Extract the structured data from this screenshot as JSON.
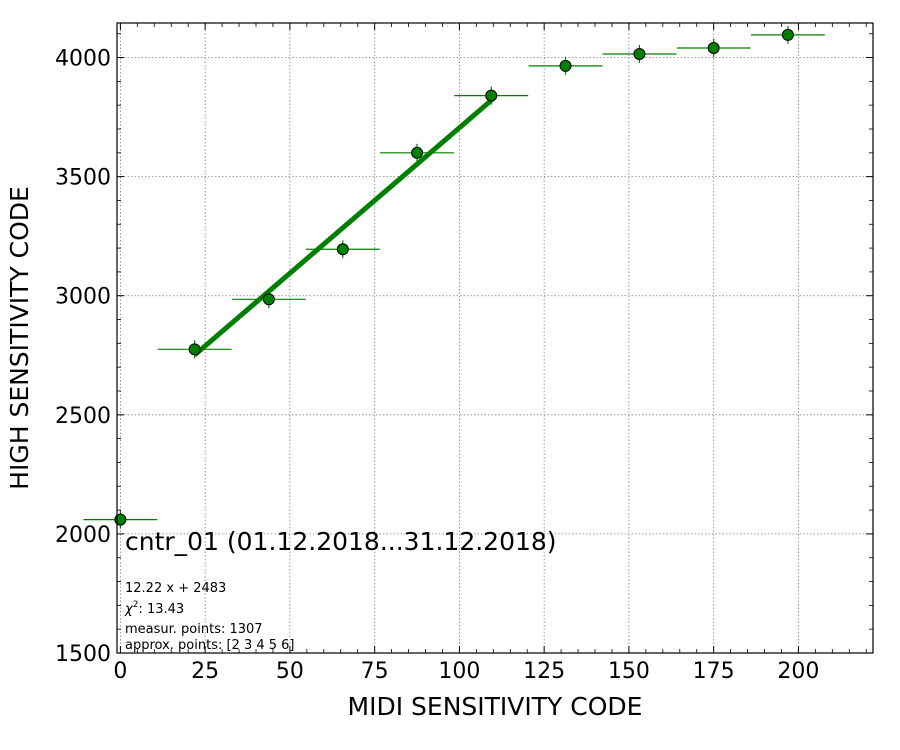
{
  "chart_data": {
    "type": "scatter",
    "xlabel": "MIDI SENSITIVITY CODE",
    "ylabel": "HIGH SENSITIVITY CODE",
    "xlim": [
      -1,
      222
    ],
    "ylim": [
      1500,
      4145
    ],
    "xticks": [
      0,
      25,
      50,
      75,
      100,
      125,
      150,
      175,
      200
    ],
    "yticks": [
      1500,
      2000,
      2500,
      3000,
      3500,
      4000
    ],
    "grid": true,
    "colors": {
      "points": "#008000",
      "fit": "#008000",
      "grid": "#808080"
    },
    "series": [
      {
        "type": "scatter-errorbar",
        "x": [
          0,
          21.9,
          43.8,
          65.6,
          87.5,
          109.4,
          131.3,
          153.1,
          175.0,
          196.9
        ],
        "y": [
          2060,
          2775,
          2985,
          3195,
          3600,
          3840,
          3965,
          4015,
          4040,
          4095
        ],
        "xerr": 10.9
      },
      {
        "type": "line",
        "x": [
          21.9,
          109.4
        ],
        "y": [
          2751,
          3820
        ]
      }
    ],
    "annotations": {
      "title": "cntr_01 (01.12.2018...31.12.2018)",
      "fit_equation": "12.22 x + 2483",
      "chi2_label": "χ",
      "chi2_sup": "2",
      "chi2_value": ": 13.43",
      "measured": "measur. points: 1307",
      "approx": "approx. points: [2 3 4 5 6]"
    }
  }
}
